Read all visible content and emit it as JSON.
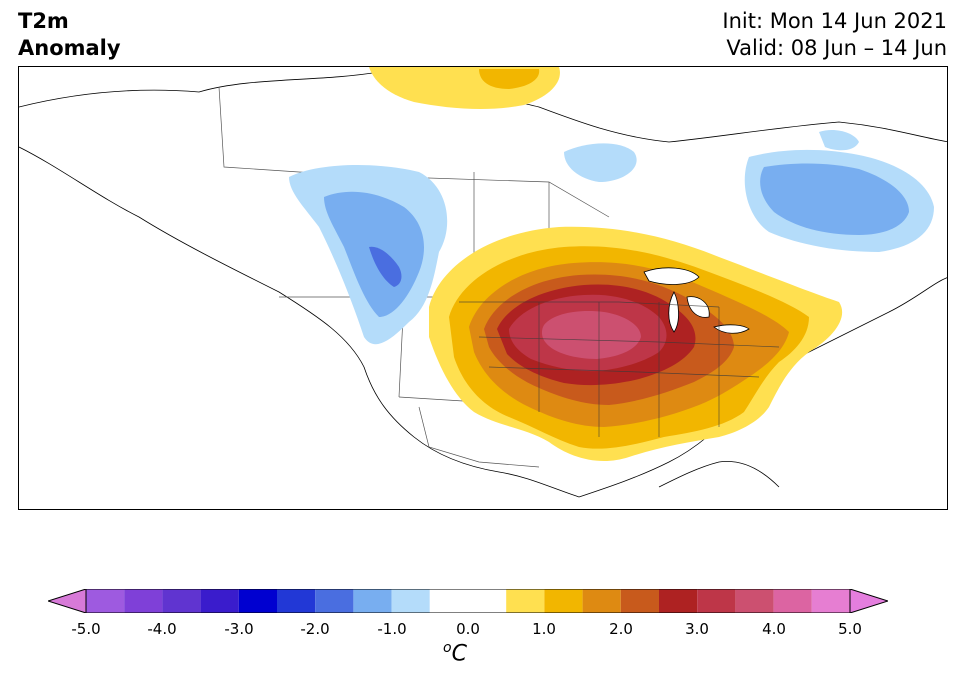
{
  "header": {
    "title_line1": "T2m",
    "title_line2": "Anomaly",
    "init_line": "Init: Mon 14 Jun 2021",
    "valid_line": "Valid: 08 Jun – 14 Jun"
  },
  "colorbar": {
    "tick_labels": [
      "-5.0",
      "-4.0",
      "-3.0",
      "-2.0",
      "-1.0",
      "0.0",
      "1.0",
      "2.0",
      "3.0",
      "4.0",
      "5.0"
    ],
    "unit_base": "C",
    "unit_super": "o",
    "bins": [
      {
        "from": -5.0,
        "to": -4.5,
        "color": "#9e5ae0"
      },
      {
        "from": -4.5,
        "to": -4.0,
        "color": "#7f40d8"
      },
      {
        "from": -4.0,
        "to": -3.5,
        "color": "#6034d0"
      },
      {
        "from": -3.5,
        "to": -3.0,
        "color": "#3a1ccc"
      },
      {
        "from": -3.0,
        "to": -2.5,
        "color": "#0000d0"
      },
      {
        "from": -2.5,
        "to": -2.0,
        "color": "#2238d6"
      },
      {
        "from": -2.0,
        "to": -1.5,
        "color": "#4a6ee0"
      },
      {
        "from": -1.5,
        "to": -1.0,
        "color": "#78aef0"
      },
      {
        "from": -1.0,
        "to": -0.5,
        "color": "#b4dcfa"
      },
      {
        "from": -0.5,
        "to": 0.5,
        "color": "#ffffff"
      },
      {
        "from": 0.5,
        "to": 1.0,
        "color": "#ffe050"
      },
      {
        "from": 1.0,
        "to": 1.5,
        "color": "#f2b600"
      },
      {
        "from": 1.5,
        "to": 2.0,
        "color": "#de8a12"
      },
      {
        "from": 2.0,
        "to": 2.5,
        "color": "#c85a1c"
      },
      {
        "from": 2.5,
        "to": 3.0,
        "color": "#ae2222"
      },
      {
        "from": 3.0,
        "to": 3.5,
        "color": "#be3648"
      },
      {
        "from": 3.5,
        "to": 4.0,
        "color": "#cc5070"
      },
      {
        "from": 4.0,
        "to": 4.5,
        "color": "#dc64a2"
      },
      {
        "from": 4.5,
        "to": 5.0,
        "color": "#e67ed2"
      }
    ],
    "under_color": "#d77ad8",
    "over_color": "#e47ede"
  },
  "map": {
    "region": "North America",
    "anomaly_features": [
      {
        "name": "heat-dome-central-us",
        "peak_anomaly": 4.5
      },
      {
        "name": "cool-anomaly-pacific-northwest",
        "min_anomaly": -2.5
      },
      {
        "name": "cool-anomaly-quebec-labrador",
        "min_anomaly": -2.0
      },
      {
        "name": "warm-anomaly-arctic-archipelago",
        "peak_anomaly": 1.0
      }
    ]
  }
}
